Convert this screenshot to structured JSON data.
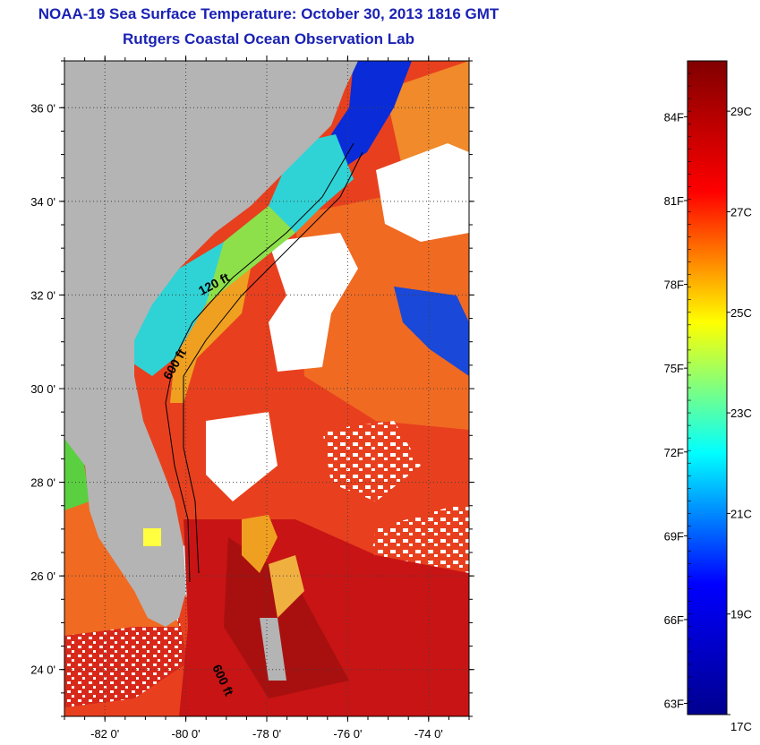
{
  "title": {
    "line1": "NOAA-19 Sea Surface Temperature:  October 30, 2013 1816 GMT",
    "line2": "Rutgers Coastal Ocean Observation Lab"
  },
  "map": {
    "lon_range": [
      -83,
      -73
    ],
    "lat_range": [
      23,
      37
    ],
    "lat_ticks": [
      {
        "value": 36,
        "label": "36 0'"
      },
      {
        "value": 34,
        "label": "34 0'"
      },
      {
        "value": 32,
        "label": "32 0'"
      },
      {
        "value": 30,
        "label": "30 0'"
      },
      {
        "value": 28,
        "label": "28 0'"
      },
      {
        "value": 26,
        "label": "26 0'"
      },
      {
        "value": 24,
        "label": "24 0'"
      }
    ],
    "lon_ticks": [
      {
        "value": -82,
        "label": "-82 0'"
      },
      {
        "value": -80,
        "label": "-80 0'"
      },
      {
        "value": -78,
        "label": "-78 0'"
      },
      {
        "value": -76,
        "label": "-76 0'"
      },
      {
        "value": -74,
        "label": "-74 0'"
      }
    ],
    "contour_labels": [
      "120 ft",
      "600 ft",
      "600 ft"
    ],
    "colors": {
      "land": "#b4b4b4",
      "cloud": "#ffffff",
      "warm_ocean": "#e8401e",
      "hot_ocean": "#c81414",
      "shelf_cool": "#2fd3d6",
      "shelf_mid": "#f0a020",
      "cold": "#0a2cd8"
    }
  },
  "colorbar": {
    "range_c": [
      17,
      30
    ],
    "celsius_ticks": [
      "29C",
      "27C",
      "25C",
      "23C",
      "21C",
      "19C",
      "17C"
    ],
    "fahrenheit_ticks": [
      "84F",
      "81F",
      "78F",
      "75F",
      "72F",
      "69F",
      "66F",
      "63F"
    ],
    "stops": [
      "#00008f",
      "#0000ff",
      "#00ffff",
      "#ffff00",
      "#ff0000",
      "#800000"
    ]
  }
}
